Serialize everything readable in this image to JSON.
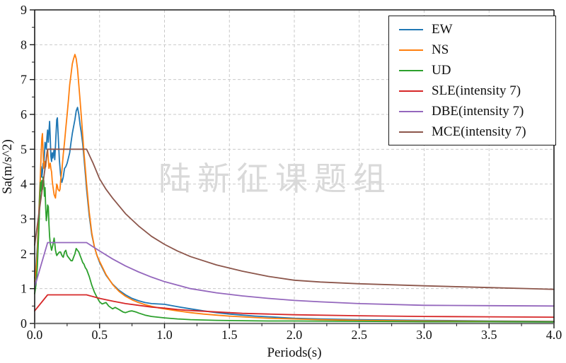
{
  "chart_data": {
    "type": "line",
    "title": "",
    "xlabel": "Periods(s)",
    "ylabel": "Sa(m/s^2)",
    "xlim": [
      0.0,
      4.0
    ],
    "ylim": [
      0,
      9
    ],
    "xticks": [
      0.0,
      0.5,
      1.0,
      1.5,
      2.0,
      2.5,
      3.0,
      3.5,
      4.0
    ],
    "xtick_labels": [
      "0.0",
      "0.5",
      "1.0",
      "1.5",
      "2.0",
      "2.5",
      "3.0",
      "3.5",
      "4.0"
    ],
    "yticks": [
      0,
      1,
      2,
      3,
      4,
      5,
      6,
      7,
      8,
      9
    ],
    "ytick_labels": [
      "0",
      "1",
      "2",
      "3",
      "4",
      "5",
      "6",
      "7",
      "8",
      "9"
    ],
    "grid": "dashed both axes at major ticks",
    "legend_position": "upper right",
    "watermark": "陆新征课题组",
    "series": [
      {
        "name": "EW",
        "color": "#1f77b4",
        "points": [
          [
            0,
            1.3
          ],
          [
            0.01,
            1.6
          ],
          [
            0.02,
            2.2
          ],
          [
            0.03,
            3.0
          ],
          [
            0.04,
            3.9
          ],
          [
            0.05,
            4.5
          ],
          [
            0.055,
            4.2
          ],
          [
            0.06,
            4.35
          ],
          [
            0.065,
            4.6
          ],
          [
            0.07,
            4.5
          ],
          [
            0.08,
            5.2
          ],
          [
            0.09,
            5.0
          ],
          [
            0.095,
            5.35
          ],
          [
            0.1,
            5.55
          ],
          [
            0.105,
            5.2
          ],
          [
            0.11,
            5.5
          ],
          [
            0.115,
            5.8
          ],
          [
            0.12,
            5.35
          ],
          [
            0.125,
            4.8
          ],
          [
            0.13,
            4.65
          ],
          [
            0.135,
            4.9
          ],
          [
            0.14,
            4.75
          ],
          [
            0.15,
            5.0
          ],
          [
            0.155,
            4.7
          ],
          [
            0.16,
            5.1
          ],
          [
            0.17,
            5.85
          ],
          [
            0.175,
            5.9
          ],
          [
            0.18,
            5.5
          ],
          [
            0.19,
            4.7
          ],
          [
            0.2,
            4.25
          ],
          [
            0.21,
            4.05
          ],
          [
            0.22,
            4.2
          ],
          [
            0.23,
            4.45
          ],
          [
            0.24,
            4.5
          ],
          [
            0.25,
            4.6
          ],
          [
            0.26,
            4.75
          ],
          [
            0.27,
            4.9
          ],
          [
            0.28,
            5.2
          ],
          [
            0.29,
            5.45
          ],
          [
            0.3,
            5.65
          ],
          [
            0.31,
            5.85
          ],
          [
            0.32,
            6.1
          ],
          [
            0.33,
            6.2
          ],
          [
            0.34,
            6.0
          ],
          [
            0.35,
            5.7
          ],
          [
            0.36,
            5.45
          ],
          [
            0.37,
            5.15
          ],
          [
            0.38,
            4.75
          ],
          [
            0.39,
            4.3
          ],
          [
            0.4,
            3.85
          ],
          [
            0.42,
            3.1
          ],
          [
            0.44,
            2.55
          ],
          [
            0.46,
            2.2
          ],
          [
            0.48,
            1.95
          ],
          [
            0.5,
            1.75
          ],
          [
            0.55,
            1.38
          ],
          [
            0.6,
            1.13
          ],
          [
            0.65,
            0.95
          ],
          [
            0.7,
            0.82
          ],
          [
            0.75,
            0.72
          ],
          [
            0.8,
            0.65
          ],
          [
            0.85,
            0.6
          ],
          [
            0.9,
            0.57
          ],
          [
            0.95,
            0.56
          ],
          [
            1.0,
            0.55
          ],
          [
            1.1,
            0.48
          ],
          [
            1.2,
            0.42
          ],
          [
            1.3,
            0.36
          ],
          [
            1.4,
            0.31
          ],
          [
            1.5,
            0.27
          ],
          [
            1.6,
            0.24
          ],
          [
            1.7,
            0.21
          ],
          [
            1.8,
            0.19
          ],
          [
            1.9,
            0.17
          ],
          [
            2.0,
            0.15
          ],
          [
            2.2,
            0.13
          ],
          [
            2.5,
            0.11
          ],
          [
            3.0,
            0.09
          ],
          [
            3.5,
            0.07
          ],
          [
            4.0,
            0.06
          ]
        ]
      },
      {
        "name": "NS",
        "color": "#ff7f0e",
        "points": [
          [
            0,
            1.2
          ],
          [
            0.01,
            1.5
          ],
          [
            0.02,
            2.0
          ],
          [
            0.03,
            2.9
          ],
          [
            0.04,
            3.8
          ],
          [
            0.05,
            4.9
          ],
          [
            0.055,
            5.3
          ],
          [
            0.06,
            5.45
          ],
          [
            0.065,
            4.9
          ],
          [
            0.07,
            4.45
          ],
          [
            0.075,
            4.55
          ],
          [
            0.08,
            4.65
          ],
          [
            0.085,
            4.5
          ],
          [
            0.09,
            4.75
          ],
          [
            0.095,
            4.9
          ],
          [
            0.1,
            5.0
          ],
          [
            0.105,
            4.7
          ],
          [
            0.11,
            4.45
          ],
          [
            0.115,
            4.55
          ],
          [
            0.12,
            4.6
          ],
          [
            0.125,
            4.45
          ],
          [
            0.13,
            4.35
          ],
          [
            0.135,
            4.1
          ],
          [
            0.14,
            3.95
          ],
          [
            0.15,
            3.7
          ],
          [
            0.16,
            3.6
          ],
          [
            0.165,
            3.8
          ],
          [
            0.17,
            4.0
          ],
          [
            0.175,
            3.95
          ],
          [
            0.18,
            3.85
          ],
          [
            0.19,
            3.8
          ],
          [
            0.195,
            3.85
          ],
          [
            0.2,
            4.1
          ],
          [
            0.21,
            4.4
          ],
          [
            0.22,
            4.85
          ],
          [
            0.23,
            5.2
          ],
          [
            0.24,
            5.6
          ],
          [
            0.25,
            6.0
          ],
          [
            0.26,
            6.4
          ],
          [
            0.27,
            6.85
          ],
          [
            0.28,
            7.15
          ],
          [
            0.29,
            7.45
          ],
          [
            0.3,
            7.6
          ],
          [
            0.31,
            7.72
          ],
          [
            0.32,
            7.6
          ],
          [
            0.33,
            7.3
          ],
          [
            0.34,
            6.85
          ],
          [
            0.35,
            6.4
          ],
          [
            0.36,
            5.9
          ],
          [
            0.37,
            5.4
          ],
          [
            0.38,
            4.9
          ],
          [
            0.39,
            4.45
          ],
          [
            0.4,
            4.0
          ],
          [
            0.42,
            3.2
          ],
          [
            0.44,
            2.6
          ],
          [
            0.46,
            2.2
          ],
          [
            0.48,
            1.95
          ],
          [
            0.5,
            1.78
          ],
          [
            0.55,
            1.4
          ],
          [
            0.6,
            1.12
          ],
          [
            0.65,
            0.92
          ],
          [
            0.7,
            0.78
          ],
          [
            0.75,
            0.68
          ],
          [
            0.8,
            0.6
          ],
          [
            0.85,
            0.54
          ],
          [
            0.9,
            0.49
          ],
          [
            0.95,
            0.45
          ],
          [
            1.0,
            0.42
          ],
          [
            1.1,
            0.36
          ],
          [
            1.2,
            0.31
          ],
          [
            1.3,
            0.27
          ],
          [
            1.4,
            0.24
          ],
          [
            1.5,
            0.21
          ],
          [
            1.6,
            0.19
          ],
          [
            1.7,
            0.17
          ],
          [
            1.8,
            0.15
          ],
          [
            1.9,
            0.14
          ],
          [
            2.0,
            0.13
          ],
          [
            2.2,
            0.11
          ],
          [
            2.5,
            0.09
          ],
          [
            3.0,
            0.07
          ],
          [
            3.5,
            0.06
          ],
          [
            4.0,
            0.05
          ]
        ]
      },
      {
        "name": "UD",
        "color": "#2ca02c",
        "points": [
          [
            0,
            0.85
          ],
          [
            0.01,
            1.1
          ],
          [
            0.02,
            1.6
          ],
          [
            0.03,
            2.5
          ],
          [
            0.04,
            3.5
          ],
          [
            0.045,
            4.05
          ],
          [
            0.05,
            3.8
          ],
          [
            0.055,
            4.1
          ],
          [
            0.06,
            3.85
          ],
          [
            0.065,
            4.2
          ],
          [
            0.07,
            4.1
          ],
          [
            0.075,
            3.65
          ],
          [
            0.08,
            3.9
          ],
          [
            0.085,
            3.3
          ],
          [
            0.09,
            2.95
          ],
          [
            0.095,
            3.1
          ],
          [
            0.1,
            3.4
          ],
          [
            0.105,
            3.35
          ],
          [
            0.11,
            2.85
          ],
          [
            0.115,
            2.5
          ],
          [
            0.12,
            2.3
          ],
          [
            0.13,
            2.1
          ],
          [
            0.14,
            2.25
          ],
          [
            0.15,
            2.45
          ],
          [
            0.155,
            2.3
          ],
          [
            0.16,
            2.1
          ],
          [
            0.17,
            1.95
          ],
          [
            0.18,
            2.0
          ],
          [
            0.19,
            2.05
          ],
          [
            0.2,
            2.05
          ],
          [
            0.21,
            1.95
          ],
          [
            0.22,
            1.9
          ],
          [
            0.23,
            2.05
          ],
          [
            0.24,
            2.1
          ],
          [
            0.25,
            1.95
          ],
          [
            0.26,
            1.9
          ],
          [
            0.27,
            1.85
          ],
          [
            0.28,
            1.8
          ],
          [
            0.29,
            1.8
          ],
          [
            0.3,
            1.9
          ],
          [
            0.31,
            2.0
          ],
          [
            0.32,
            2.15
          ],
          [
            0.33,
            2.1
          ],
          [
            0.34,
            2.05
          ],
          [
            0.35,
            1.95
          ],
          [
            0.36,
            1.85
          ],
          [
            0.37,
            1.75
          ],
          [
            0.38,
            1.7
          ],
          [
            0.39,
            1.6
          ],
          [
            0.4,
            1.55
          ],
          [
            0.42,
            1.35
          ],
          [
            0.44,
            1.1
          ],
          [
            0.46,
            0.9
          ],
          [
            0.48,
            0.75
          ],
          [
            0.5,
            0.62
          ],
          [
            0.52,
            0.56
          ],
          [
            0.55,
            0.6
          ],
          [
            0.57,
            0.5
          ],
          [
            0.6,
            0.42
          ],
          [
            0.62,
            0.46
          ],
          [
            0.65,
            0.4
          ],
          [
            0.68,
            0.33
          ],
          [
            0.7,
            0.31
          ],
          [
            0.73,
            0.35
          ],
          [
            0.75,
            0.36
          ],
          [
            0.78,
            0.33
          ],
          [
            0.8,
            0.3
          ],
          [
            0.85,
            0.24
          ],
          [
            0.9,
            0.2
          ],
          [
            0.95,
            0.18
          ],
          [
            1.0,
            0.16
          ],
          [
            1.1,
            0.13
          ],
          [
            1.2,
            0.11
          ],
          [
            1.4,
            0.09
          ],
          [
            1.6,
            0.08
          ],
          [
            1.8,
            0.07
          ],
          [
            2.0,
            0.07
          ],
          [
            2.5,
            0.06
          ],
          [
            3.0,
            0.05
          ],
          [
            3.5,
            0.05
          ],
          [
            4.0,
            0.04
          ]
        ]
      },
      {
        "name": "SLE(intensity 7)",
        "color": "#d62728",
        "points": [
          [
            0,
            0.36
          ],
          [
            0.1,
            0.82
          ],
          [
            0.4,
            0.82
          ],
          [
            0.45,
            0.77
          ],
          [
            0.5,
            0.72
          ],
          [
            0.6,
            0.64
          ],
          [
            0.7,
            0.57
          ],
          [
            0.8,
            0.52
          ],
          [
            0.9,
            0.47
          ],
          [
            1.0,
            0.44
          ],
          [
            1.1,
            0.4
          ],
          [
            1.2,
            0.37
          ],
          [
            1.4,
            0.33
          ],
          [
            1.6,
            0.29
          ],
          [
            1.8,
            0.27
          ],
          [
            2.0,
            0.25
          ],
          [
            2.5,
            0.22
          ],
          [
            3.0,
            0.2
          ],
          [
            3.5,
            0.19
          ],
          [
            4.0,
            0.18
          ]
        ]
      },
      {
        "name": "DBE(intensity 7)",
        "color": "#9467bd",
        "points": [
          [
            0,
            1.05
          ],
          [
            0.1,
            2.32
          ],
          [
            0.4,
            2.32
          ],
          [
            0.45,
            2.2
          ],
          [
            0.5,
            2.08
          ],
          [
            0.6,
            1.85
          ],
          [
            0.7,
            1.65
          ],
          [
            0.8,
            1.48
          ],
          [
            0.9,
            1.33
          ],
          [
            1.0,
            1.2
          ],
          [
            1.1,
            1.1
          ],
          [
            1.2,
            1.0
          ],
          [
            1.4,
            0.88
          ],
          [
            1.6,
            0.79
          ],
          [
            1.8,
            0.72
          ],
          [
            2.0,
            0.66
          ],
          [
            2.2,
            0.62
          ],
          [
            2.5,
            0.57
          ],
          [
            3.0,
            0.52
          ],
          [
            3.5,
            0.51
          ],
          [
            4.0,
            0.5
          ]
        ]
      },
      {
        "name": "MCE(intensity 7)",
        "color": "#8c564b",
        "points": [
          [
            0,
            2.25
          ],
          [
            0.1,
            5.0
          ],
          [
            0.4,
            5.0
          ],
          [
            0.45,
            4.6
          ],
          [
            0.5,
            4.15
          ],
          [
            0.55,
            3.85
          ],
          [
            0.6,
            3.6
          ],
          [
            0.7,
            3.15
          ],
          [
            0.8,
            2.8
          ],
          [
            0.9,
            2.5
          ],
          [
            1.0,
            2.27
          ],
          [
            1.1,
            2.08
          ],
          [
            1.2,
            1.92
          ],
          [
            1.4,
            1.68
          ],
          [
            1.6,
            1.5
          ],
          [
            1.8,
            1.35
          ],
          [
            2.0,
            1.24
          ],
          [
            2.2,
            1.19
          ],
          [
            2.5,
            1.14
          ],
          [
            3.0,
            1.08
          ],
          [
            3.5,
            1.03
          ],
          [
            4.0,
            0.98
          ]
        ]
      }
    ],
    "colors": {
      "grid": "#c9c9c9",
      "spine": "#1a1a1a",
      "bottom_spine": "#7a7a7a",
      "tick_label": "#111111",
      "watermark": "#d9d9d9"
    }
  }
}
